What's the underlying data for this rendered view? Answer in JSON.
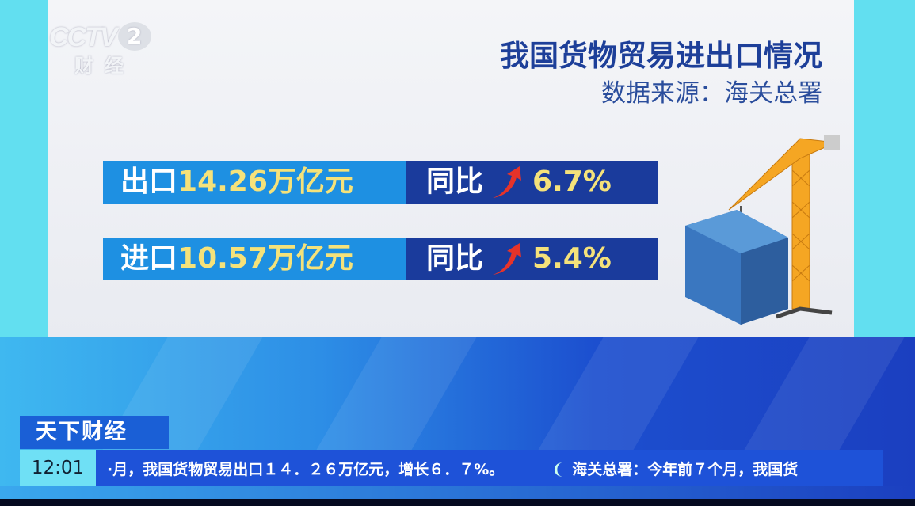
{
  "channel": {
    "logo": "CCTV",
    "number": "2",
    "sub": "财经"
  },
  "title": "我国货物贸易进出口情况",
  "source": "数据来源：海关总署",
  "rows": [
    {
      "label": "出口",
      "value": "14.26万亿元",
      "yoy_label": "同比",
      "yoy": "6.7%",
      "trend": "up-arrow-icon"
    },
    {
      "label": "进口",
      "value": "10.57万亿元",
      "yoy_label": "同比",
      "yoy": "5.4%",
      "trend": "up-arrow-icon"
    }
  ],
  "show": "天下财经",
  "ticker": {
    "time": "12:01",
    "text": "·月，我国货物贸易出口１４．２６万亿元，增长６．７%。",
    "text2": "海关总署：今年前７个月，我国货"
  },
  "colors": {
    "accent": "#1e90e2",
    "navy": "#1a3b9c",
    "value": "#f5e27a"
  }
}
